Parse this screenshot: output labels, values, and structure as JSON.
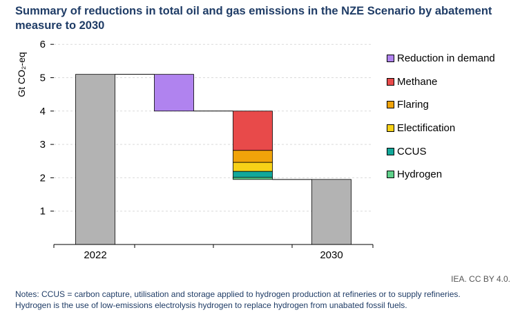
{
  "title": "Summary of reductions in total oil and gas emissions in the NZE Scenario by abatement measure to 2030",
  "credit": "IEA. CC BY 4.0.",
  "notes": [
    "Notes: CCUS = carbon capture, utilisation and storage applied to hydrogen production at refineries or to supply refineries.",
    "Hydrogen is the use of low-emissions electrolysis hydrogen to replace hydrogen from unabated fossil fuels."
  ],
  "chart_data": {
    "type": "waterfall",
    "ylabel": "Gt CO₂-eq",
    "ylim": [
      0,
      6
    ],
    "yticks": [
      1,
      2,
      3,
      4,
      5,
      6
    ],
    "grid": true,
    "legend_position": "right",
    "categories": [
      "2022",
      "",
      "",
      "2030"
    ],
    "totals": [
      {
        "category": "2022",
        "value": 5.1,
        "color": "#b3b3b3"
      },
      {
        "category": "2030",
        "value": 1.95,
        "color": "#b3b3b3"
      }
    ],
    "series": [
      {
        "name": "Reduction in demand",
        "color": "#b083ef",
        "column": 1,
        "value": 1.1
      },
      {
        "name": "Methane",
        "color": "#e84a4a",
        "column": 2,
        "value": 1.18
      },
      {
        "name": "Flaring",
        "color": "#f0a30a",
        "column": 2,
        "value": 0.36
      },
      {
        "name": "Electification",
        "color": "#f7d117",
        "column": 2,
        "value": 0.27
      },
      {
        "name": "CCUS",
        "color": "#12a89a",
        "column": 2,
        "value": 0.18
      },
      {
        "name": "Hydrogen",
        "color": "#5fd08a",
        "column": 2,
        "value": 0.06
      }
    ]
  }
}
